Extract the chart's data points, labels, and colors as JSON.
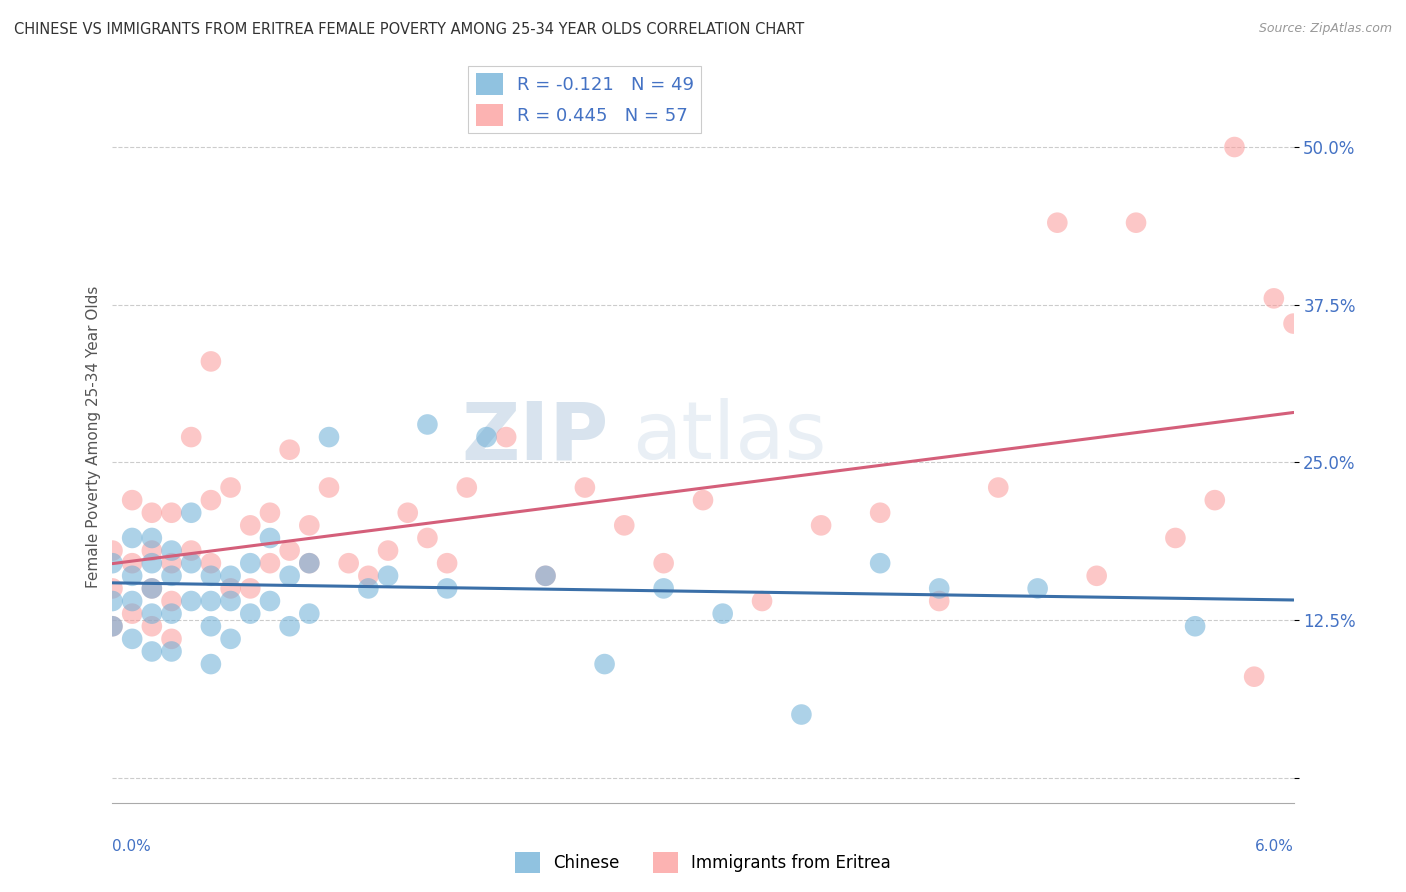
{
  "title": "CHINESE VS IMMIGRANTS FROM ERITREA FEMALE POVERTY AMONG 25-34 YEAR OLDS CORRELATION CHART",
  "source": "Source: ZipAtlas.com",
  "ylabel": "Female Poverty Among 25-34 Year Olds",
  "xmin": 0.0,
  "xmax": 0.06,
  "ymin": -0.02,
  "ymax": 0.56,
  "yticks": [
    0.0,
    0.125,
    0.25,
    0.375,
    0.5
  ],
  "ytick_labels": [
    "",
    "12.5%",
    "25.0%",
    "37.5%",
    "50.0%"
  ],
  "color_chinese": "#6baed6",
  "color_eritrea": "#fb9a99",
  "line_color_chinese": "#3a6fa8",
  "line_color_eritrea": "#d45f7a",
  "watermark_zip": "ZIP",
  "watermark_atlas": "atlas",
  "chinese_x": [
    0.0,
    0.0,
    0.0,
    0.001,
    0.001,
    0.001,
    0.001,
    0.002,
    0.002,
    0.002,
    0.002,
    0.002,
    0.003,
    0.003,
    0.003,
    0.003,
    0.004,
    0.004,
    0.004,
    0.005,
    0.005,
    0.005,
    0.005,
    0.006,
    0.006,
    0.006,
    0.007,
    0.007,
    0.008,
    0.008,
    0.009,
    0.009,
    0.01,
    0.01,
    0.011,
    0.013,
    0.014,
    0.016,
    0.017,
    0.019,
    0.022,
    0.025,
    0.028,
    0.031,
    0.035,
    0.039,
    0.042,
    0.047,
    0.055
  ],
  "chinese_y": [
    0.17,
    0.14,
    0.12,
    0.19,
    0.16,
    0.14,
    0.11,
    0.19,
    0.17,
    0.15,
    0.13,
    0.1,
    0.18,
    0.16,
    0.13,
    0.1,
    0.21,
    0.17,
    0.14,
    0.16,
    0.14,
    0.12,
    0.09,
    0.16,
    0.14,
    0.11,
    0.17,
    0.13,
    0.19,
    0.14,
    0.16,
    0.12,
    0.17,
    0.13,
    0.27,
    0.15,
    0.16,
    0.28,
    0.15,
    0.27,
    0.16,
    0.09,
    0.15,
    0.13,
    0.05,
    0.17,
    0.15,
    0.15,
    0.12
  ],
  "eritrea_x": [
    0.0,
    0.0,
    0.0,
    0.001,
    0.001,
    0.001,
    0.002,
    0.002,
    0.002,
    0.002,
    0.003,
    0.003,
    0.003,
    0.003,
    0.004,
    0.004,
    0.005,
    0.005,
    0.005,
    0.006,
    0.006,
    0.007,
    0.007,
    0.008,
    0.008,
    0.009,
    0.009,
    0.01,
    0.01,
    0.011,
    0.012,
    0.013,
    0.014,
    0.015,
    0.016,
    0.017,
    0.018,
    0.02,
    0.022,
    0.024,
    0.026,
    0.028,
    0.03,
    0.033,
    0.036,
    0.039,
    0.042,
    0.045,
    0.048,
    0.05,
    0.052,
    0.054,
    0.056,
    0.057,
    0.058,
    0.059,
    0.06
  ],
  "eritrea_y": [
    0.18,
    0.15,
    0.12,
    0.22,
    0.17,
    0.13,
    0.21,
    0.18,
    0.15,
    0.12,
    0.21,
    0.17,
    0.14,
    0.11,
    0.27,
    0.18,
    0.17,
    0.33,
    0.22,
    0.23,
    0.15,
    0.2,
    0.15,
    0.21,
    0.17,
    0.26,
    0.18,
    0.2,
    0.17,
    0.23,
    0.17,
    0.16,
    0.18,
    0.21,
    0.19,
    0.17,
    0.23,
    0.27,
    0.16,
    0.23,
    0.2,
    0.17,
    0.22,
    0.14,
    0.2,
    0.21,
    0.14,
    0.23,
    0.44,
    0.16,
    0.44,
    0.19,
    0.22,
    0.5,
    0.08,
    0.38,
    0.36
  ]
}
